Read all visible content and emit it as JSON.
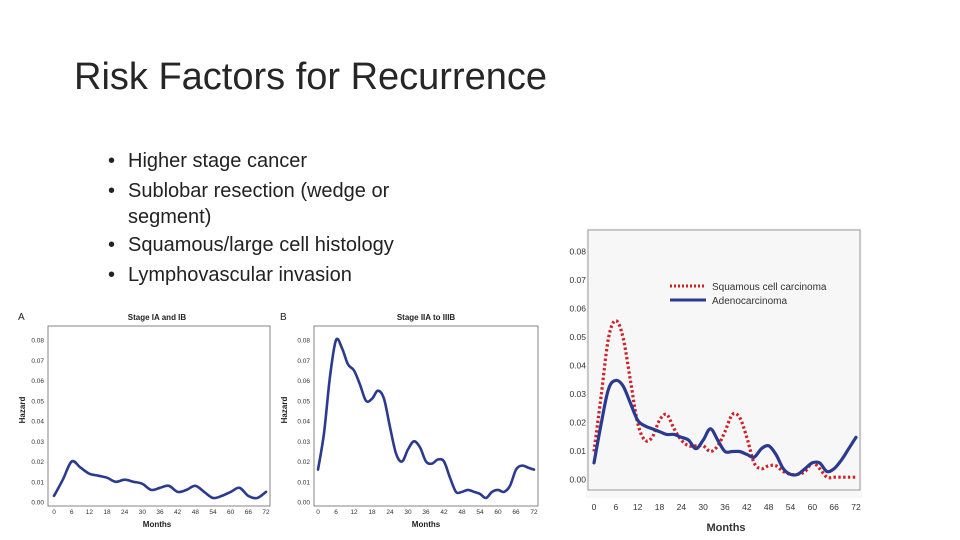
{
  "slide": {
    "title": "Risk Factors for Recurrence",
    "bullets": [
      "Higher stage cancer",
      "Sublobar resection (wedge or segment)",
      "Squamous/large cell histology",
      "Lymphovascular invasion"
    ]
  },
  "chart_data": [
    {
      "type": "line",
      "panel_label": "A",
      "title": "Stage IA and IB",
      "xlabel": "Months",
      "ylabel": "Hazard",
      "xlim": [
        0,
        72
      ],
      "ylim": [
        0,
        0.085
      ],
      "xticks": [
        0,
        6,
        12,
        18,
        24,
        30,
        36,
        42,
        48,
        54,
        60,
        66,
        72
      ],
      "yticks": [
        "0.00",
        "0.01",
        "0.02",
        "0.03",
        "0.04",
        "0.05",
        "0.06",
        "0.07",
        "0.08"
      ],
      "grid": false,
      "color": "#2b3a8f",
      "series": [
        {
          "x": [
            0,
            3,
            6,
            9,
            12,
            15,
            18,
            21,
            24,
            27,
            30,
            33,
            36,
            39,
            42,
            45,
            48,
            51,
            54,
            57,
            60,
            63,
            66,
            69,
            72
          ],
          "y": [
            0.003,
            0.011,
            0.02,
            0.017,
            0.014,
            0.013,
            0.012,
            0.01,
            0.011,
            0.01,
            0.009,
            0.006,
            0.007,
            0.008,
            0.005,
            0.006,
            0.008,
            0.005,
            0.002,
            0.003,
            0.005,
            0.007,
            0.003,
            0.002,
            0.005
          ]
        }
      ]
    },
    {
      "type": "line",
      "panel_label": "B",
      "title": "Stage IIA to IIIB",
      "xlabel": "Months",
      "ylabel": "Hazard",
      "xlim": [
        0,
        72
      ],
      "ylim": [
        0,
        0.085
      ],
      "xticks": [
        0,
        6,
        12,
        18,
        24,
        30,
        36,
        42,
        48,
        54,
        60,
        66,
        72
      ],
      "yticks": [
        "0.00",
        "0.01",
        "0.02",
        "0.03",
        "0.04",
        "0.05",
        "0.06",
        "0.07",
        "0.08"
      ],
      "grid": false,
      "color": "#2b3a8f",
      "series": [
        {
          "x": [
            0,
            2,
            4,
            6,
            8,
            10,
            12,
            14,
            16,
            18,
            20,
            22,
            24,
            26,
            28,
            30,
            32,
            34,
            36,
            38,
            40,
            42,
            44,
            46,
            48,
            50,
            52,
            54,
            56,
            58,
            60,
            62,
            64,
            66,
            68,
            70,
            72
          ],
          "y": [
            0.016,
            0.034,
            0.062,
            0.08,
            0.076,
            0.068,
            0.065,
            0.058,
            0.05,
            0.051,
            0.055,
            0.051,
            0.037,
            0.024,
            0.02,
            0.026,
            0.03,
            0.027,
            0.02,
            0.019,
            0.021,
            0.02,
            0.012,
            0.005,
            0.005,
            0.006,
            0.005,
            0.004,
            0.002,
            0.005,
            0.006,
            0.005,
            0.008,
            0.016,
            0.018,
            0.017,
            0.016
          ]
        }
      ]
    },
    {
      "type": "line",
      "title": "",
      "xlabel": "Months",
      "ylabel": "",
      "xlim": [
        0,
        72
      ],
      "ylim": [
        0,
        0.085
      ],
      "xticks": [
        0,
        6,
        12,
        18,
        24,
        30,
        36,
        42,
        48,
        54,
        60,
        66,
        72
      ],
      "yticks": [
        "0.00",
        "0.01",
        "0.02",
        "0.03",
        "0.04",
        "0.05",
        "0.06",
        "0.07",
        "0.08"
      ],
      "grid": false,
      "legend": "top-right",
      "series": [
        {
          "name": "Squamous cell carcinoma",
          "color": "#d0202a",
          "style": "dotted",
          "x": [
            0,
            2,
            4,
            6,
            8,
            10,
            12,
            14,
            16,
            18,
            20,
            22,
            24,
            26,
            28,
            30,
            32,
            34,
            36,
            38,
            40,
            42,
            44,
            46,
            48,
            50,
            52,
            54,
            56,
            58,
            60,
            62,
            64,
            66,
            68,
            70,
            72
          ],
          "y": [
            0.01,
            0.03,
            0.05,
            0.056,
            0.05,
            0.035,
            0.02,
            0.014,
            0.015,
            0.021,
            0.023,
            0.018,
            0.014,
            0.012,
            0.012,
            0.012,
            0.01,
            0.012,
            0.017,
            0.023,
            0.022,
            0.015,
            0.006,
            0.004,
            0.005,
            0.005,
            0.003,
            0.002,
            0.002,
            0.003,
            0.006,
            0.004,
            0.001,
            0.001,
            0.001,
            0.001,
            0.001
          ]
        },
        {
          "name": "Adenocarcinoma",
          "color": "#2b3a8f",
          "style": "solid",
          "x": [
            0,
            2,
            4,
            6,
            8,
            10,
            12,
            14,
            16,
            18,
            20,
            22,
            24,
            26,
            28,
            30,
            32,
            34,
            36,
            38,
            40,
            42,
            44,
            46,
            48,
            50,
            52,
            54,
            56,
            58,
            60,
            62,
            64,
            66,
            68,
            70,
            72
          ],
          "y": [
            0.006,
            0.02,
            0.032,
            0.035,
            0.033,
            0.027,
            0.021,
            0.019,
            0.018,
            0.017,
            0.016,
            0.016,
            0.015,
            0.014,
            0.011,
            0.014,
            0.018,
            0.014,
            0.01,
            0.01,
            0.01,
            0.009,
            0.008,
            0.011,
            0.012,
            0.009,
            0.004,
            0.002,
            0.002,
            0.004,
            0.006,
            0.006,
            0.003,
            0.004,
            0.007,
            0.011,
            0.015
          ]
        }
      ]
    }
  ]
}
